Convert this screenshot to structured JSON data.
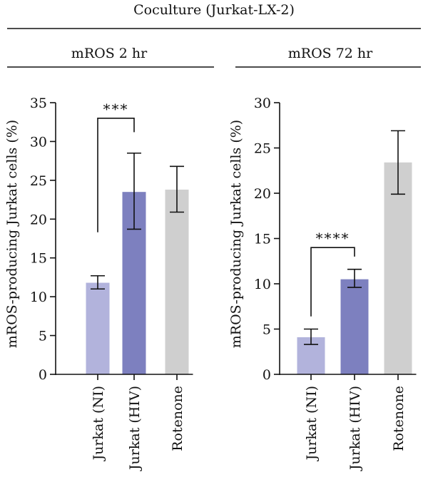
{
  "header": {
    "title": "Coculture (Jurkat-LX-2)"
  },
  "colors": {
    "ni": "#b2b3dc",
    "hiv": "#7d80bf",
    "rotenone": "#cfcfcf",
    "ink": "#111111"
  },
  "chart_data": [
    {
      "type": "bar",
      "title": "mROS 2 hr",
      "ylabel": "mROS-producing Jurkat cells (%)",
      "categories": [
        "Jurkat (NI)",
        "Jurkat (HIV)",
        "Rotenone"
      ],
      "values": [
        11.8,
        23.5,
        23.8
      ],
      "error": [
        [
          11.0,
          12.7
        ],
        [
          18.7,
          28.5
        ],
        [
          20.9,
          26.8
        ]
      ],
      "ylim": [
        0,
        35
      ],
      "yticks": [
        0,
        5,
        10,
        15,
        20,
        25,
        30,
        35
      ],
      "significance": {
        "from": 0,
        "to": 1,
        "label": "***"
      },
      "grid": false
    },
    {
      "type": "bar",
      "title": "mROS 72 hr",
      "ylabel": "mROS-producing Jurkat cells (%)",
      "categories": [
        "Jurkat (NI)",
        "Jurkat (HIV)",
        "Rotenone"
      ],
      "values": [
        4.1,
        10.5,
        23.4
      ],
      "error": [
        [
          3.3,
          5.0
        ],
        [
          9.6,
          11.6
        ],
        [
          19.9,
          26.9
        ]
      ],
      "ylim": [
        0,
        30
      ],
      "yticks": [
        0,
        5,
        10,
        15,
        20,
        25,
        30
      ],
      "significance": {
        "from": 0,
        "to": 1,
        "label": "****"
      },
      "grid": false
    }
  ]
}
